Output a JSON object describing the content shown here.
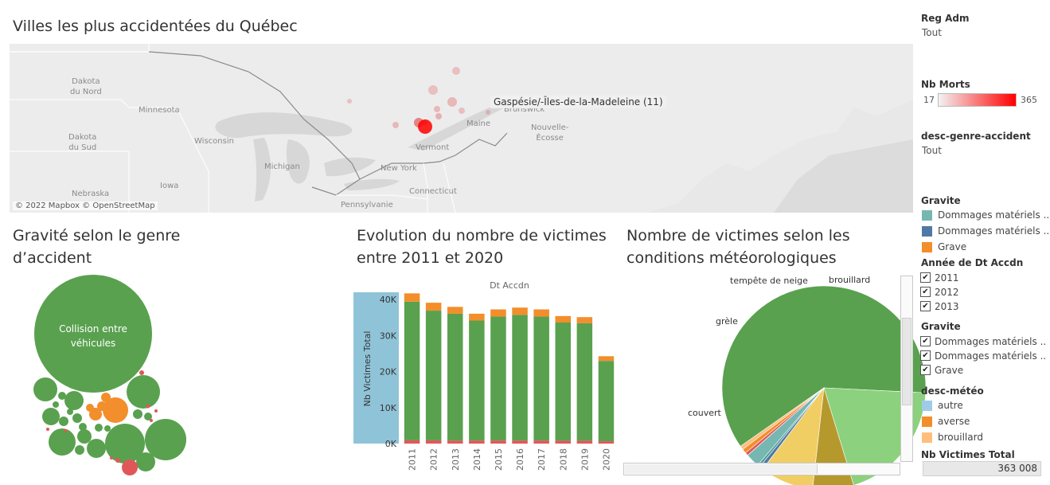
{
  "map_panel": {
    "title": "Villes les plus accidentées du Québec",
    "credit": "© 2022 Mapbox © OpenStreetMap",
    "tooltip": "Gaspésie/-Îles-de-la-Madeleine (11)",
    "labels": {
      "dakota_nord": "Dakota\ndu Nord",
      "minnesota": "Minnesota",
      "dakota_sud": "Dakota\ndu Sud",
      "wisconsin": "Wisconsin",
      "michigan": "Michigan",
      "iowa": "Iowa",
      "nebraska": "Nebraska",
      "new_york": "New York",
      "vermont": "Vermont",
      "maine": "Maine",
      "connecticut": "Connecticut",
      "pennsylvanie": "Pennsylvanie",
      "brunswick": "Brunswick",
      "nouvelle_ecosse": "Nouvelle-\nÉcosse"
    }
  },
  "bubble_panel": {
    "title_line1": "Gravité selon le genre",
    "title_line2": "d’accident",
    "main_bubble_line1": "Collision entre",
    "main_bubble_line2": "véhicules"
  },
  "bar_panel": {
    "title_line1": "Evolution du nombre de victimes",
    "title_line2": "entre 2011 et 2020"
  },
  "pie_panel": {
    "title_line1": "Nombre de victimes selon les",
    "title_line2": "conditions météorologiques"
  },
  "colors": {
    "green": "#59a14f",
    "orange": "#f28e2b",
    "red": "#e15759",
    "teal": "#76b7b2",
    "blue": "#4e79a7",
    "light_blue": "#a0cbe8",
    "light_orange": "#ffbe7d",
    "light_green": "#8cd17d",
    "olive": "#b6992d",
    "yellow": "#f1ce63",
    "axis_highlight": "#8fc4d8"
  },
  "chart_data": [
    {
      "type": "bar",
      "title": "",
      "xlabel": "Dt Accdn",
      "ylabel": "Nb Victimes Total",
      "ylim": [
        0,
        42000
      ],
      "yticks": [
        "0K",
        "10K",
        "20K",
        "30K",
        "40K"
      ],
      "ytick_values": [
        0,
        10000,
        20000,
        30000,
        40000
      ],
      "categories": [
        "2011",
        "2012",
        "2013",
        "2014",
        "2015",
        "2016",
        "2017",
        "2018",
        "2019",
        "2020"
      ],
      "series": [
        {
          "name": "",
          "color": "#e15759",
          "values": [
            900,
            900,
            850,
            850,
            850,
            850,
            850,
            800,
            800,
            650
          ]
        },
        {
          "name": "",
          "color": "#59a14f",
          "values": [
            38500,
            36000,
            35200,
            33300,
            34400,
            34900,
            34400,
            32800,
            32600,
            22300
          ]
        },
        {
          "name": "",
          "color": "#f28e2b",
          "values": [
            2300,
            2200,
            1900,
            1900,
            2000,
            2000,
            2000,
            1800,
            1700,
            1300
          ]
        }
      ],
      "legend": "none",
      "grid": false
    },
    {
      "type": "pie",
      "title": "",
      "slices": [
        {
          "label": "",
          "color": "#59a14f",
          "value": 60.5
        },
        {
          "label": "couvert",
          "color": "#8cd17d",
          "value": 19.5
        },
        {
          "label": "grèle",
          "color": "#b6992d",
          "value": 6.5
        },
        {
          "label": "tempête de neige",
          "color": "#f1ce63",
          "value": 8.5
        },
        {
          "label": "",
          "color": "#4e79a7",
          "value": 0.6
        },
        {
          "label": "",
          "color": "#499894",
          "value": 0.4
        },
        {
          "label": "",
          "color": "#76b7b2",
          "value": 2.2
        },
        {
          "label": "",
          "color": "#e15759",
          "value": 0.5
        },
        {
          "label": "",
          "color": "#f28e2b",
          "value": 0.7
        },
        {
          "label": "brouillard",
          "color": "#ffbe7d",
          "value": 0.6
        }
      ],
      "start_angle_deg": 145
    }
  ],
  "sidebar": {
    "reg_adm": {
      "title": "Reg Adm",
      "value": "Tout"
    },
    "nb_morts": {
      "title": "Nb Morts",
      "min": "17",
      "max": "365"
    },
    "genre": {
      "title": "desc-genre-accident",
      "value": "Tout"
    },
    "gravite_legend": {
      "title": "Gravite",
      "items": [
        {
          "label": "Dommages matériels ..",
          "color": "#76b7b2"
        },
        {
          "label": "Dommages matériels ..",
          "color": "#4e79a7"
        },
        {
          "label": "Grave",
          "color": "#f28e2b"
        }
      ]
    },
    "annee_filter": {
      "title": "Année de Dt Accdn",
      "items": [
        {
          "label": "2011",
          "check": "✔"
        },
        {
          "label": "2012",
          "check": "✔"
        },
        {
          "label": "2013",
          "check": "✔"
        }
      ]
    },
    "gravite_filter": {
      "title": "Gravite",
      "items": [
        {
          "label": "Dommages matériels ..",
          "check": "✔"
        },
        {
          "label": "Dommages matériels ..",
          "check": "✔"
        },
        {
          "label": "Grave",
          "check": "✔"
        }
      ]
    },
    "meteo_legend": {
      "title": "desc-météo",
      "items": [
        {
          "label": "autre",
          "color": "#a0cbe8"
        },
        {
          "label": "averse",
          "color": "#f28e2b"
        },
        {
          "label": "brouillard",
          "color": "#ffbe7d"
        }
      ]
    },
    "total": {
      "title": "Nb Victimes Total",
      "value": "363 008"
    }
  }
}
